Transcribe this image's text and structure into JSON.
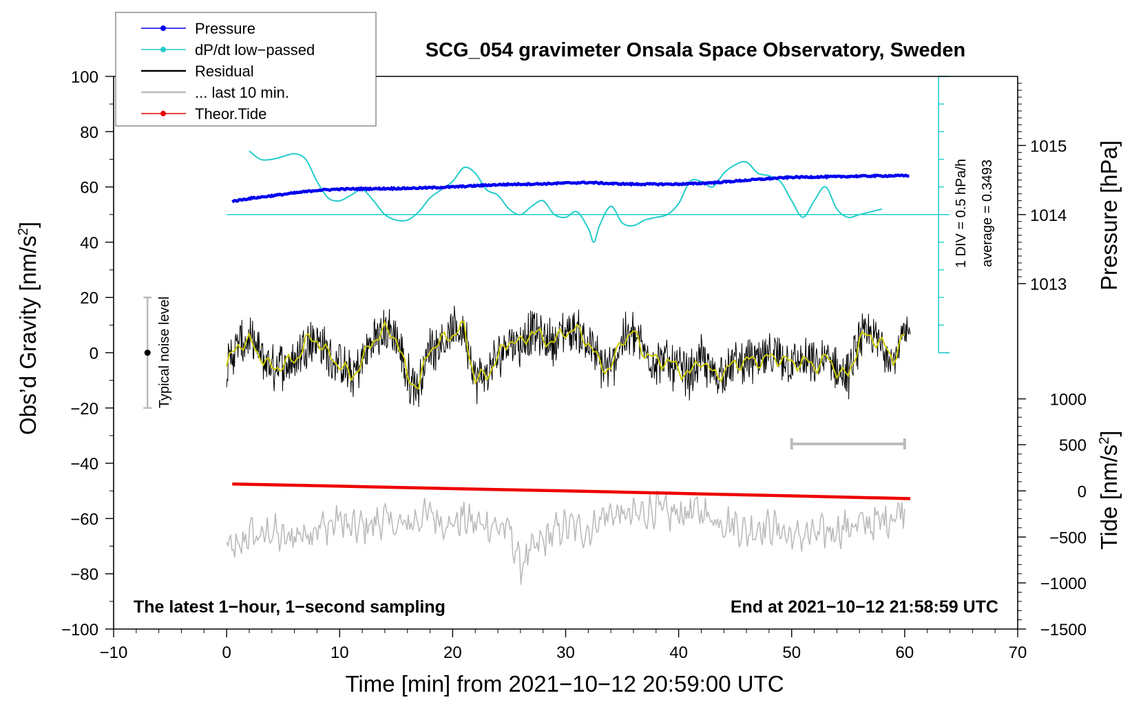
{
  "chart_data": {
    "type": "line",
    "title": "SCG_054 gravimeter Onsala Space Observatory, Sweden",
    "xlabel": "Time [min] from 2021−10−12 20:59:00 UTC",
    "ylabel_left_main": "Obs’d Gravity [nm/s",
    "ylabel_left_sup": "2",
    "ylabel_left_end": "]",
    "ylabel_right_pressure": "Pressure [hPa]",
    "ylabel_right_tide_main": "Tide [nm/s",
    "ylabel_right_tide_sup": "2",
    "ylabel_right_tide_end": "]",
    "xlim": [
      -10,
      70
    ],
    "ylim": [
      -100,
      100
    ],
    "x_ticks": [
      "−10",
      "0",
      "10",
      "20",
      "30",
      "40",
      "50",
      "60",
      "70"
    ],
    "x_tick_values": [
      -10,
      0,
      10,
      20,
      30,
      40,
      50,
      60,
      70
    ],
    "y_ticks": [
      "100",
      "80",
      "60",
      "40",
      "20",
      "0",
      "−20",
      "−40",
      "−60",
      "−80",
      "−100"
    ],
    "y_tick_values": [
      100,
      80,
      60,
      40,
      20,
      0,
      -20,
      -40,
      -60,
      -80,
      -100
    ],
    "pressure_axis": {
      "ticks": [
        "1015",
        "1014",
        "1013"
      ],
      "tick_values": [
        1015,
        1014,
        1013
      ],
      "gravity_equivalent": [
        75,
        50,
        25
      ]
    },
    "tide_axis": {
      "ticks": [
        "1000",
        "500",
        "0",
        "−500",
        "−1000",
        "−1500"
      ],
      "tick_values": [
        1000,
        500,
        0,
        -500,
        -1000,
        -1500
      ],
      "gravity_equivalent": [
        -16.7,
        -33.3,
        -50,
        -66.7,
        -83.3,
        -100
      ]
    },
    "legend": [
      {
        "name": "Pressure",
        "color": "#0000ee",
        "marker": true
      },
      {
        "name": "dP/dt low−passed",
        "color": "#22cccc",
        "marker": true
      },
      {
        "name": "Residual",
        "color": "#000000",
        "marker": false
      },
      {
        "name": "... last 10 min.",
        "color": "#bbbbbb",
        "marker": false
      },
      {
        "name": "Theor.Tide",
        "color": "#ee0000",
        "marker": true
      }
    ],
    "legend_position": "top-left",
    "series": [
      {
        "name": "Pressure",
        "color": "#0000ee",
        "x": [
          0.5,
          2,
          4,
          6,
          8,
          10,
          12,
          14,
          16,
          18,
          20,
          22,
          24,
          26,
          28,
          30,
          32,
          34,
          36,
          38,
          40,
          42,
          44,
          46,
          48,
          50,
          52,
          54,
          56,
          58,
          60.5
        ],
        "y": [
          54.8,
          55.8,
          56.8,
          57.8,
          58.8,
          59.2,
          59.3,
          59.4,
          59.5,
          59.7,
          60.0,
          60.4,
          60.8,
          61.0,
          61.1,
          61.4,
          61.6,
          61.2,
          61.0,
          61.0,
          61.0,
          61.3,
          61.8,
          62.4,
          63.0,
          63.5,
          63.6,
          63.7,
          63.9,
          64.0,
          64.1
        ]
      },
      {
        "name": "dP/dt low−passed",
        "color": "#22cccc",
        "x": [
          2,
          3,
          4,
          5,
          6,
          7,
          8,
          9,
          10,
          11,
          12,
          13,
          14,
          15,
          16,
          17,
          18,
          19,
          20,
          21,
          22,
          23,
          24,
          25,
          26,
          27,
          28,
          29,
          30,
          31,
          32,
          32.5,
          33,
          34,
          35,
          36,
          37,
          38,
          39,
          40,
          41,
          42,
          43,
          44,
          45,
          46,
          47,
          48,
          49,
          50,
          51,
          52,
          53,
          54,
          55,
          56,
          57,
          58
        ],
        "y": [
          73,
          70,
          70,
          71,
          72,
          70,
          62,
          56,
          55,
          57,
          59,
          55,
          50,
          48,
          48,
          51,
          56,
          59,
          62,
          67,
          65,
          59,
          57,
          52,
          50,
          53,
          55,
          50,
          49,
          51,
          45,
          40,
          46,
          53,
          47,
          46,
          48,
          49,
          50,
          54,
          62,
          62,
          60,
          65,
          68,
          69,
          65,
          64,
          62,
          55,
          49,
          55,
          60,
          52,
          49,
          50,
          51,
          52
        ]
      },
      {
        "name": "Residual",
        "color": "#000000",
        "x": [
          0,
          1,
          2,
          3,
          4,
          5,
          6,
          7,
          8,
          9,
          10,
          11,
          12,
          13,
          14,
          15,
          16,
          17,
          18,
          19,
          20,
          21,
          22,
          23,
          24,
          25,
          26,
          27,
          28,
          29,
          30,
          31,
          32,
          33,
          34,
          35,
          36,
          37,
          38,
          39,
          40,
          41,
          42,
          43,
          44,
          45,
          46,
          47,
          48,
          49,
          50,
          51,
          52,
          53,
          54,
          55,
          56,
          57,
          58,
          59,
          60
        ],
        "y": [
          -5,
          3,
          4,
          -1,
          -6,
          -4,
          -3,
          4,
          5,
          -1,
          -4,
          -9,
          -3,
          5,
          8,
          6,
          -9,
          -12,
          2,
          4,
          7,
          9,
          -10,
          -8,
          -2,
          5,
          3,
          8,
          5,
          4,
          8,
          8,
          4,
          -4,
          -6,
          5,
          7,
          0,
          -3,
          -3,
          -6,
          -8,
          -2,
          -8,
          -7,
          -4,
          -3,
          -3,
          -2,
          -2,
          -4,
          -3,
          -5,
          -2,
          -6,
          -9,
          5,
          6,
          3,
          -2,
          6
        ]
      },
      {
        "name": "Theor.Tide",
        "color": "#ee0000",
        "x": [
          0.5,
          10,
          20,
          30,
          40,
          50,
          60.5
        ],
        "y": [
          -47.5,
          -48.3,
          -49.2,
          -50.0,
          -50.9,
          -51.8,
          -52.8
        ]
      },
      {
        "name": "... last 10 min.",
        "color": "#bbbbbb",
        "x": [
          0,
          1,
          2,
          3,
          4,
          5,
          6,
          7,
          8,
          9,
          10,
          11,
          12,
          13,
          14,
          15,
          16,
          17,
          18,
          19,
          20,
          21,
          22,
          23,
          24,
          25,
          26,
          27,
          28,
          29,
          30,
          31,
          32,
          33,
          34,
          35,
          36,
          37,
          38,
          39,
          40,
          41,
          42,
          43,
          44,
          45,
          46,
          47,
          48,
          49,
          50,
          51,
          52,
          53,
          54,
          55,
          56,
          57,
          58,
          59,
          60
        ],
        "y": [
          -70,
          -72,
          -65,
          -67,
          -64,
          -68,
          -66,
          -65,
          -63,
          -63,
          -60,
          -64,
          -63,
          -62,
          -60,
          -63,
          -62,
          -60,
          -58,
          -61,
          -62,
          -60,
          -62,
          -62,
          -63,
          -64,
          -77,
          -72,
          -68,
          -65,
          -63,
          -63,
          -65,
          -60,
          -58,
          -59,
          -59,
          -58,
          -56,
          -59,
          -58,
          -58,
          -57,
          -60,
          -61,
          -62,
          -65,
          -63,
          -63,
          -64,
          -67,
          -66,
          -66,
          -65,
          -64,
          -63,
          -62,
          -62,
          -61,
          -59,
          -56
        ]
      }
    ],
    "smoothed_residual_color": "#cccc00",
    "pressure_scale_bar": {
      "label_div": "1 DIV = 0.5 hPa/h",
      "label_avg": "average = 0.3493"
    },
    "noise_bar_label": "Typical noise level",
    "noise_bar": {
      "x": -7,
      "y_low": -20,
      "y_high": 20
    },
    "grey_bar": {
      "x_start": 50,
      "x_end": 60,
      "y": -33
    },
    "note_left": "The latest 1−hour, 1−second sampling",
    "note_right": "End at 2021−10−12 21:58:59 UTC",
    "grid": false
  }
}
